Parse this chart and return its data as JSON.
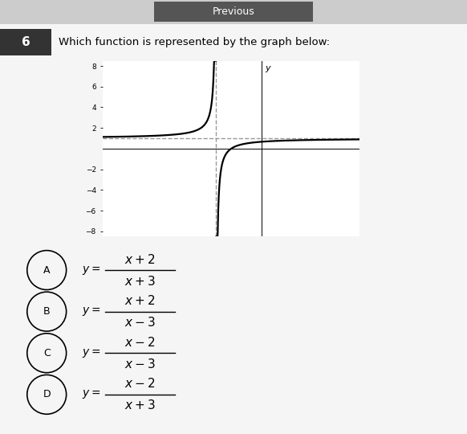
{
  "title_text": "Which function is represented by the graph below:",
  "question_number": "6",
  "graph_xlim": [
    -10.5,
    6.5
  ],
  "graph_ylim": [
    -8.5,
    8.5
  ],
  "xticks": [
    -10,
    -8,
    -6,
    -4,
    -2,
    0,
    2,
    4,
    6
  ],
  "yticks": [
    -8,
    -6,
    -4,
    -2,
    2,
    4,
    6,
    8
  ],
  "vertical_asymptote": -3,
  "horizontal_asymptote": 1,
  "background_color": "#f5f5f5",
  "curve_color": "#000000",
  "asymptote_color": "#999999",
  "prev_bg": "#555555",
  "prev_text_color": "#ffffff",
  "prev_button_text": "Previous",
  "qnum_bg": "#333333",
  "qnum_text": "6",
  "num_texts": [
    "x+2",
    "x+2",
    "x-2",
    "x-2"
  ],
  "den_texts": [
    "x+3",
    "x-3",
    "x-3",
    "x+3"
  ],
  "choice_labels": [
    "A",
    "B",
    "C",
    "D"
  ]
}
